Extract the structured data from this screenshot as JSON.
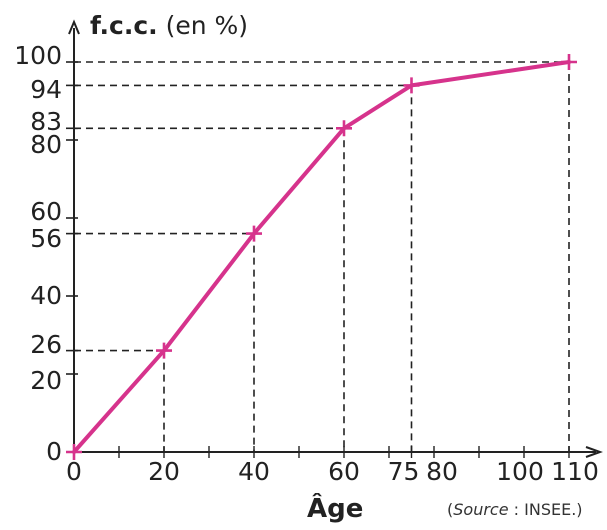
{
  "chart_data": {
    "type": "line",
    "ylabel_bold": "f.c.c.",
    "ylabel_unit": "(en %)",
    "xlabel": "Âge",
    "source_label": "Source",
    "source_value": ": INSEE.)",
    "xlim": [
      0,
      110
    ],
    "ylim": [
      0,
      100
    ],
    "x_ticks": [
      0,
      20,
      40,
      60,
      75,
      80,
      100,
      110
    ],
    "x_tick_labels": [
      "0",
      "20",
      "40",
      "60",
      "75",
      "80",
      "100",
      "110"
    ],
    "y_ticks": [
      0,
      20,
      26,
      40,
      56,
      60,
      80,
      83,
      94,
      100
    ],
    "y_tick_labels": [
      "0",
      "20",
      "26",
      "40",
      "56",
      "60",
      "80",
      "83",
      "94",
      "100"
    ],
    "x": [
      0,
      20,
      40,
      60,
      75,
      110
    ],
    "y": [
      0,
      26,
      56,
      83,
      94,
      100
    ],
    "line_color": "#d6338c",
    "dashed_guides": true
  }
}
